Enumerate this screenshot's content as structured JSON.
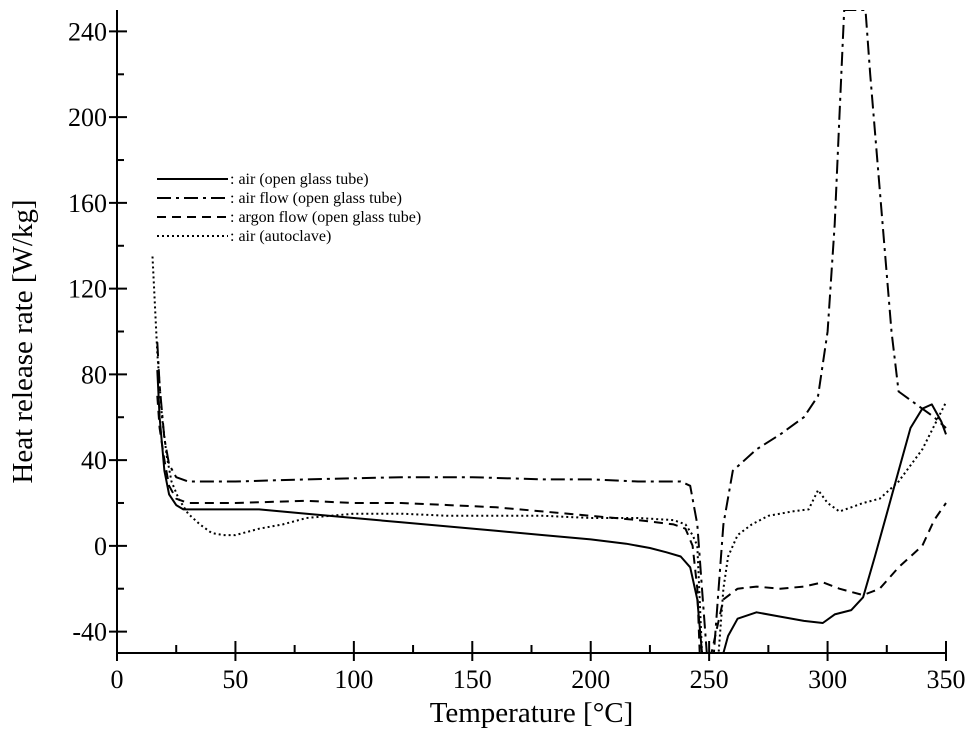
{
  "chart_data": {
    "type": "line",
    "xlabel": "Temperature [°C]",
    "ylabel": "Heat release rate [W/kg]",
    "xlim": [
      0,
      350
    ],
    "ylim": [
      -50,
      250
    ],
    "x_ticks": [
      0,
      50,
      100,
      150,
      200,
      250,
      300,
      350
    ],
    "y_ticks": [
      -40,
      0,
      40,
      80,
      120,
      160,
      200,
      240
    ],
    "legend_placement": "upper-left",
    "grid": false,
    "series": [
      {
        "name": ": air (open glass tube)",
        "style": "solid",
        "points": [
          [
            17,
            82
          ],
          [
            18,
            60
          ],
          [
            20,
            35
          ],
          [
            22,
            24
          ],
          [
            25,
            19
          ],
          [
            28,
            17
          ],
          [
            40,
            17
          ],
          [
            60,
            17
          ],
          [
            80,
            15
          ],
          [
            100,
            13
          ],
          [
            120,
            11
          ],
          [
            140,
            9
          ],
          [
            160,
            7
          ],
          [
            180,
            5
          ],
          [
            200,
            3
          ],
          [
            215,
            1
          ],
          [
            225,
            -1
          ],
          [
            232,
            -3
          ],
          [
            238,
            -5
          ],
          [
            242,
            -10
          ],
          [
            245,
            -25
          ],
          [
            247,
            -50
          ],
          [
            256,
            -50
          ],
          [
            258,
            -42
          ],
          [
            262,
            -34
          ],
          [
            270,
            -31
          ],
          [
            280,
            -33
          ],
          [
            290,
            -35
          ],
          [
            298,
            -36
          ],
          [
            303,
            -32
          ],
          [
            310,
            -30
          ],
          [
            315,
            -24
          ],
          [
            320,
            -5
          ],
          [
            325,
            15
          ],
          [
            330,
            35
          ],
          [
            335,
            55
          ],
          [
            340,
            64
          ],
          [
            344,
            66
          ],
          [
            348,
            58
          ],
          [
            350,
            52
          ]
        ]
      },
      {
        "name": ": air flow (open glass tube)",
        "style": "dashdot",
        "points": [
          [
            17,
            95
          ],
          [
            18,
            75
          ],
          [
            20,
            50
          ],
          [
            22,
            38
          ],
          [
            25,
            32
          ],
          [
            30,
            30
          ],
          [
            50,
            30
          ],
          [
            80,
            31
          ],
          [
            120,
            32
          ],
          [
            150,
            32
          ],
          [
            180,
            31
          ],
          [
            200,
            31
          ],
          [
            220,
            30
          ],
          [
            238,
            30
          ],
          [
            242,
            28
          ],
          [
            245,
            10
          ],
          [
            247,
            -20
          ],
          [
            249,
            -50
          ],
          [
            252,
            -50
          ],
          [
            254,
            -20
          ],
          [
            256,
            10
          ],
          [
            260,
            35
          ],
          [
            270,
            45
          ],
          [
            280,
            52
          ],
          [
            290,
            60
          ],
          [
            296,
            70
          ],
          [
            300,
            100
          ],
          [
            303,
            150
          ],
          [
            305,
            200
          ],
          [
            307,
            250
          ],
          [
            316,
            250
          ],
          [
            318,
            220
          ],
          [
            321,
            180
          ],
          [
            324,
            140
          ],
          [
            327,
            100
          ],
          [
            330,
            72
          ],
          [
            335,
            68
          ],
          [
            340,
            64
          ],
          [
            345,
            60
          ],
          [
            350,
            55
          ]
        ]
      },
      {
        "name": ": argon flow (open glass tube)",
        "style": "dashed",
        "points": [
          [
            17,
            70
          ],
          [
            18,
            55
          ],
          [
            20,
            40
          ],
          [
            22,
            28
          ],
          [
            25,
            22
          ],
          [
            30,
            20
          ],
          [
            50,
            20
          ],
          [
            80,
            21
          ],
          [
            100,
            20
          ],
          [
            120,
            20
          ],
          [
            140,
            19
          ],
          [
            160,
            18
          ],
          [
            180,
            16
          ],
          [
            200,
            14
          ],
          [
            220,
            12
          ],
          [
            235,
            10
          ],
          [
            240,
            8
          ],
          [
            243,
            0
          ],
          [
            245,
            -20
          ],
          [
            246,
            -50
          ],
          [
            251,
            -50
          ],
          [
            253,
            -40
          ],
          [
            256,
            -25
          ],
          [
            262,
            -20
          ],
          [
            270,
            -19
          ],
          [
            280,
            -20
          ],
          [
            290,
            -19
          ],
          [
            298,
            -17
          ],
          [
            305,
            -20
          ],
          [
            315,
            -23
          ],
          [
            322,
            -20
          ],
          [
            330,
            -10
          ],
          [
            335,
            -5
          ],
          [
            340,
            0
          ],
          [
            345,
            12
          ],
          [
            350,
            20
          ]
        ]
      },
      {
        "name": ": air (autoclave)",
        "style": "dotted",
        "points": [
          [
            15,
            135
          ],
          [
            17,
            90
          ],
          [
            19,
            60
          ],
          [
            21,
            42
          ],
          [
            23,
            30
          ],
          [
            26,
            22
          ],
          [
            30,
            15
          ],
          [
            35,
            10
          ],
          [
            40,
            6
          ],
          [
            45,
            5
          ],
          [
            50,
            5
          ],
          [
            60,
            8
          ],
          [
            70,
            10
          ],
          [
            80,
            13
          ],
          [
            90,
            14
          ],
          [
            100,
            15
          ],
          [
            120,
            15
          ],
          [
            140,
            14
          ],
          [
            160,
            14
          ],
          [
            180,
            14
          ],
          [
            200,
            13
          ],
          [
            220,
            13
          ],
          [
            235,
            12
          ],
          [
            240,
            10
          ],
          [
            243,
            5
          ],
          [
            245,
            0
          ],
          [
            246,
            -25
          ],
          [
            247,
            -50
          ],
          [
            254,
            -50
          ],
          [
            256,
            -20
          ],
          [
            258,
            -5
          ],
          [
            262,
            5
          ],
          [
            268,
            10
          ],
          [
            275,
            14
          ],
          [
            285,
            16
          ],
          [
            292,
            17
          ],
          [
            296,
            26
          ],
          [
            300,
            20
          ],
          [
            305,
            16
          ],
          [
            310,
            18
          ],
          [
            315,
            20
          ],
          [
            322,
            22
          ],
          [
            330,
            30
          ],
          [
            340,
            45
          ],
          [
            350,
            67
          ]
        ]
      }
    ]
  }
}
